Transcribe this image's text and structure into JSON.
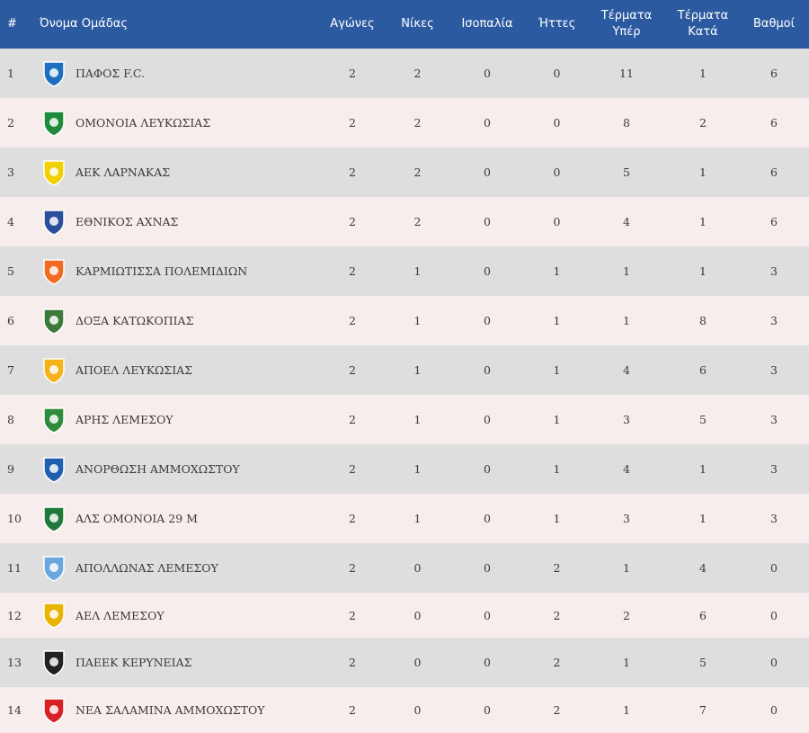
{
  "headers": {
    "rank": "#",
    "team": "Όνομα Ομάδας",
    "played": "Αγώνες",
    "wins": "Νίκες",
    "draws": "Ισοπαλία",
    "losses": "Ήττες",
    "goals_for_1": "Τέρματα",
    "goals_for_2": "Υπέρ",
    "goals_against_1": "Τέρματα",
    "goals_against_2": "Κατά",
    "points": "Βαθμοί"
  },
  "rows": [
    {
      "rank": "1",
      "team": "ΠΑΦΟΣ F.C.",
      "played": "2",
      "wins": "2",
      "draws": "0",
      "losses": "0",
      "gf": "11",
      "ga": "1",
      "pts": "6",
      "logo": "pafos-fc-logo-icon",
      "color": "#1f6fc0"
    },
    {
      "rank": "2",
      "team": "ΟΜΟΝΟΙΑ ΛΕΥΚΩΣΙΑΣ",
      "played": "2",
      "wins": "2",
      "draws": "0",
      "losses": "0",
      "gf": "8",
      "ga": "2",
      "pts": "6",
      "logo": "omonoia-logo-icon",
      "color": "#1e8a3a"
    },
    {
      "rank": "3",
      "team": "ΑΕΚ ΛΑΡΝΑΚΑΣ",
      "played": "2",
      "wins": "2",
      "draws": "0",
      "losses": "0",
      "gf": "5",
      "ga": "1",
      "pts": "6",
      "logo": "aek-larnaca-logo-icon",
      "color": "#f2d000"
    },
    {
      "rank": "4",
      "team": "ΕΘΝΙΚΟΣ ΑΧΝΑΣ",
      "played": "2",
      "wins": "2",
      "draws": "0",
      "losses": "0",
      "gf": "4",
      "ga": "1",
      "pts": "6",
      "logo": "ethnikos-achnas-logo-icon",
      "color": "#2c4f9c"
    },
    {
      "rank": "5",
      "team": "ΚΑΡΜΙΩΤΙΣΣΑ ΠΟΛΕΜΙΔΙΩΝ",
      "played": "2",
      "wins": "1",
      "draws": "0",
      "losses": "1",
      "gf": "1",
      "ga": "1",
      "pts": "3",
      "logo": "karmiotissa-logo-icon",
      "color": "#f26a21"
    },
    {
      "rank": "6",
      "team": "ΔΟΞΑ ΚΑΤΩΚΟΠΙΑΣ",
      "played": "2",
      "wins": "1",
      "draws": "0",
      "losses": "1",
      "gf": "1",
      "ga": "8",
      "pts": "3",
      "logo": "doxa-logo-icon",
      "color": "#3d7a3a"
    },
    {
      "rank": "7",
      "team": "ΑΠΟΕΛ ΛΕΥΚΩΣΙΑΣ",
      "played": "2",
      "wins": "1",
      "draws": "0",
      "losses": "1",
      "gf": "4",
      "ga": "6",
      "pts": "3",
      "logo": "apoel-logo-icon",
      "color": "#f5b21a"
    },
    {
      "rank": "8",
      "team": "ΑΡΗΣ ΛΕΜΕΣΟΥ",
      "played": "2",
      "wins": "1",
      "draws": "0",
      "losses": "1",
      "gf": "3",
      "ga": "5",
      "pts": "3",
      "logo": "aris-limassol-logo-icon",
      "color": "#2e8b3a"
    },
    {
      "rank": "9",
      "team": "ΑΝΟΡΘΩΣΗ ΑΜΜΟΧΩΣΤΟΥ",
      "played": "2",
      "wins": "1",
      "draws": "0",
      "losses": "1",
      "gf": "4",
      "ga": "1",
      "pts": "3",
      "logo": "anorthosis-logo-icon",
      "color": "#1f5fb0"
    },
    {
      "rank": "10",
      "team": "ΑΛΣ ΟΜΟΝΟΙΑ 29 Μ",
      "played": "2",
      "wins": "1",
      "draws": "0",
      "losses": "1",
      "gf": "3",
      "ga": "1",
      "pts": "3",
      "logo": "als-omonoia-logo-icon",
      "color": "#1e7a3a"
    },
    {
      "rank": "11",
      "team": "ΑΠΟΛΛΩΝΑΣ ΛΕΜΕΣΟΥ",
      "played": "2",
      "wins": "0",
      "draws": "0",
      "losses": "2",
      "gf": "1",
      "ga": "4",
      "pts": "0",
      "logo": "apollon-logo-icon",
      "color": "#6aa6df"
    },
    {
      "rank": "12",
      "team": "ΑΕΛ ΛΕΜΕΣΟΥ",
      "played": "2",
      "wins": "0",
      "draws": "0",
      "losses": "2",
      "gf": "2",
      "ga": "6",
      "pts": "0",
      "logo": "ael-logo-icon",
      "color": "#e8b400"
    },
    {
      "rank": "13",
      "team": "ΠΑΕΕΚ ΚΕΡΥΝΕΙΑΣ",
      "played": "2",
      "wins": "0",
      "draws": "0",
      "losses": "2",
      "gf": "1",
      "ga": "5",
      "pts": "0",
      "logo": "paeek-logo-icon",
      "color": "#222222"
    },
    {
      "rank": "14",
      "team": "ΝΕΑ ΣΑΛΑΜΙΝΑ ΑΜΜΟΧΩΣΤΟΥ",
      "played": "2",
      "wins": "0",
      "draws": "0",
      "losses": "2",
      "gf": "1",
      "ga": "7",
      "pts": "0",
      "logo": "nea-salamina-logo-icon",
      "color": "#d92027"
    }
  ]
}
